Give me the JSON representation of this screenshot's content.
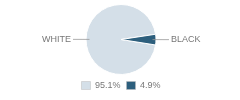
{
  "chart_data": {
    "type": "pie",
    "categories": [
      "WHITE",
      "BLACK"
    ],
    "values": [
      95.1,
      4.9
    ],
    "value_labels": [
      "95.1%",
      "4.9%"
    ],
    "colors": [
      "#d4dfe8",
      "#2d5f7d"
    ],
    "legend": "bottom"
  }
}
